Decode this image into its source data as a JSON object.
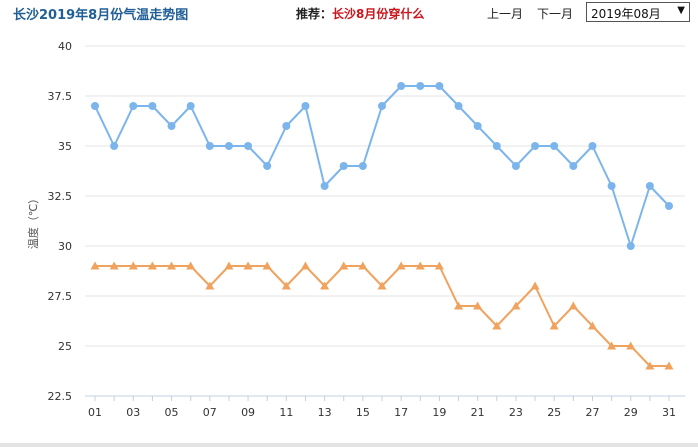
{
  "header": {
    "title": "长沙2019年8月份气温走势图",
    "recommend_label": "推荐：",
    "recommend_link": "长沙8月份穿什么",
    "prev_month": "上一月",
    "next_month": "下一月",
    "month_select": "2019年08月"
  },
  "chart_data": {
    "type": "line",
    "title": "长沙2019年8月份气温走势图",
    "ylabel": "温度（℃）",
    "xlabel": "",
    "ylim": [
      22.5,
      40
    ],
    "yticks": [
      "22.5",
      "25",
      "27.5",
      "30",
      "32.5",
      "35",
      "37.5",
      "40"
    ],
    "xtick_labels": [
      "01",
      "03",
      "05",
      "07",
      "09",
      "11",
      "13",
      "15",
      "17",
      "19",
      "21",
      "23",
      "25",
      "27",
      "29",
      "31"
    ],
    "x": [
      1,
      2,
      3,
      4,
      5,
      6,
      7,
      8,
      9,
      10,
      11,
      12,
      13,
      14,
      15,
      16,
      17,
      18,
      19,
      20,
      21,
      22,
      23,
      24,
      25,
      26,
      27,
      28,
      29,
      30,
      31
    ],
    "grid": true,
    "series": [
      {
        "color": "#7cb5ec",
        "marker": "circle",
        "values": [
          37,
          35,
          37,
          37,
          36,
          37,
          35,
          35,
          35,
          34,
          36,
          37,
          33,
          34,
          34,
          37,
          38,
          38,
          38,
          37,
          36,
          35,
          34,
          35,
          35,
          34,
          35,
          33,
          30,
          33,
          32
        ]
      },
      {
        "color": "#f0a35e",
        "marker": "triangle",
        "values": [
          29,
          29,
          29,
          29,
          29,
          29,
          28,
          29,
          29,
          29,
          28,
          29,
          28,
          29,
          29,
          28,
          29,
          29,
          29,
          27,
          27,
          26,
          27,
          28,
          26,
          27,
          26,
          25,
          25,
          24,
          24
        ]
      }
    ]
  }
}
